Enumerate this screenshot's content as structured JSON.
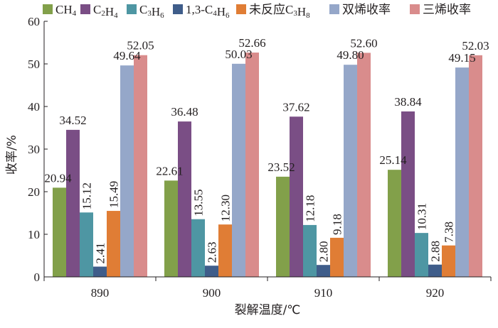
{
  "chart_data": {
    "type": "bar",
    "title": "",
    "xlabel": "裂解温度/℃",
    "ylabel": "收率/%",
    "ylim": [
      0,
      60
    ],
    "yticks": [
      0,
      10,
      20,
      30,
      40,
      50,
      60
    ],
    "categories": [
      "890",
      "900",
      "910",
      "920"
    ],
    "legend_position": "top",
    "grid": false,
    "series": [
      {
        "name": "CH4",
        "legend": [
          [
            "CH",
            ""
          ],
          [
            "4",
            "sub"
          ]
        ],
        "color": "#82a04a",
        "values": [
          20.94,
          22.61,
          23.52,
          25.14
        ],
        "labels": [
          "20.94",
          "22.61",
          "23.52",
          "25.14"
        ]
      },
      {
        "name": "C2H4",
        "legend": [
          [
            "C",
            ""
          ],
          [
            "2",
            "sub"
          ],
          [
            "H",
            ""
          ],
          [
            "4",
            "sub"
          ]
        ],
        "color": "#7a4e85",
        "values": [
          34.52,
          36.48,
          37.62,
          38.84
        ],
        "labels": [
          "34.52",
          "36.48",
          "37.62",
          "38.84"
        ]
      },
      {
        "name": "C3H6",
        "legend": [
          [
            "C",
            ""
          ],
          [
            "3",
            "sub"
          ],
          [
            "H",
            ""
          ],
          [
            "6",
            "sub"
          ]
        ],
        "color": "#4e96a3",
        "values": [
          15.12,
          13.55,
          12.18,
          10.31
        ],
        "labels": [
          "15.12",
          "13.55",
          "12.18",
          "10.31"
        ]
      },
      {
        "name": "1,3-C4H6",
        "legend": [
          [
            "1,3-C",
            ""
          ],
          [
            "4",
            "sub"
          ],
          [
            "H",
            ""
          ],
          [
            "6",
            "sub"
          ]
        ],
        "color": "#3f5d8a",
        "values": [
          2.41,
          2.63,
          2.8,
          2.88
        ],
        "labels": [
          "2.41",
          "2.63",
          "2.80",
          "2.88"
        ]
      },
      {
        "name": "未反应C3H8",
        "legend": [
          [
            "未反应C",
            ""
          ],
          [
            "3",
            "sub"
          ],
          [
            "H",
            ""
          ],
          [
            "8",
            "sub"
          ]
        ],
        "color": "#e07d35",
        "values": [
          15.49,
          12.3,
          9.18,
          7.38
        ],
        "labels": [
          "15.49",
          "12.30",
          "9.18",
          "7.38"
        ]
      },
      {
        "name": "双烯收率",
        "legend": [
          [
            "双烯收率",
            ""
          ]
        ],
        "color": "#95a7c9",
        "values": [
          49.64,
          50.03,
          49.8,
          49.15
        ],
        "labels": [
          "49.64",
          "50.03",
          "49.80",
          "49.15"
        ]
      },
      {
        "name": "三烯收率",
        "legend": [
          [
            "三烯收率",
            ""
          ]
        ],
        "color": "#d98c8c",
        "values": [
          52.05,
          52.66,
          52.6,
          52.03
        ],
        "labels": [
          "52.05",
          "52.66",
          "52.60",
          "52.03"
        ]
      }
    ]
  }
}
